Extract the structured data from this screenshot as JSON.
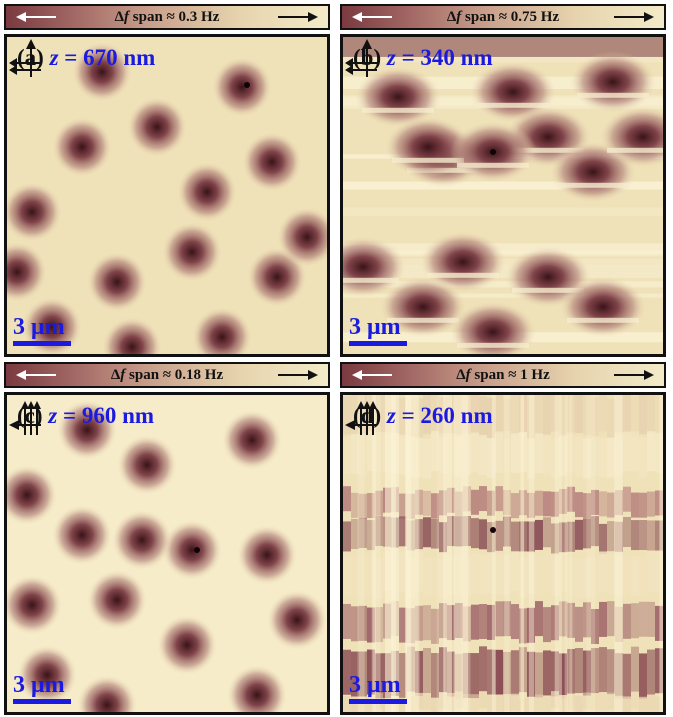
{
  "panels": [
    {
      "span_delta": "Δ",
      "span_f": "f",
      "span_rest": " span ≈ 0.3 Hz",
      "tag": "(a) ",
      "z_var": "z",
      "z_rest": " = 670 nm",
      "scale_label": "3 μm",
      "arrow_style": "right",
      "style": "sparse"
    },
    {
      "span_delta": "Δ",
      "span_f": "f",
      "span_rest": " span ≈ 0.75 Hz",
      "tag": "(b) ",
      "z_var": "z",
      "z_rest": " = 340 nm",
      "scale_label": "3 μm",
      "arrow_style": "right",
      "style": "streaky"
    },
    {
      "span_delta": "Δ",
      "span_f": "f",
      "span_rest": " span ≈ 0.18 Hz",
      "tag": "(c) ",
      "z_var": "z",
      "z_rest": " = 960 nm",
      "scale_label": "3 μm",
      "arrow_style": "left",
      "style": "sparse-light"
    },
    {
      "span_delta": "Δ",
      "span_f": "f",
      "span_rest": " span ≈ 1 Hz",
      "tag": "(d) ",
      "z_var": "z",
      "z_rest": " = 260 nm",
      "scale_label": "3 μm",
      "arrow_style": "left",
      "style": "bands"
    }
  ],
  "colors": {
    "background": "#f1e4bd",
    "spot": "#8a4a50",
    "spot_core": "#2a0c10",
    "label_blue": "#1a1ae0"
  }
}
